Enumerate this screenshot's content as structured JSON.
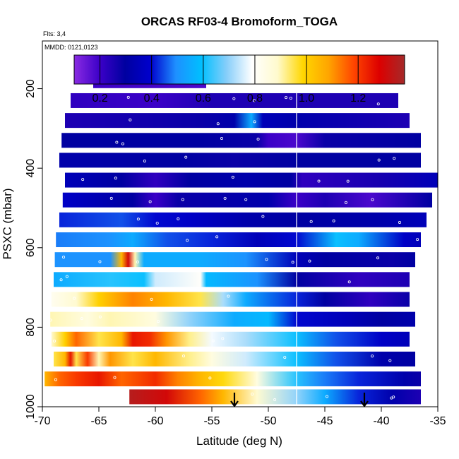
{
  "chart_data": {
    "type": "heatmap",
    "title": "ORCAS RF03-4 Bromoform_TOGA",
    "flights_note": "Flts: 3,4",
    "date_note": "MMDD: 0121,0123",
    "xlabel": "Latitude (deg N)",
    "ylabel": "PSXC (mbar)",
    "xlim": [
      -70,
      -35
    ],
    "ylim": [
      1000,
      80
    ],
    "x_ticks": [
      -70,
      -65,
      -60,
      -55,
      -50,
      -45,
      -40,
      -35
    ],
    "x_tick_labels": [
      "-70",
      "-65",
      "-60",
      "-55",
      "-50",
      "-45",
      "-40",
      "-35"
    ],
    "y_ticks": [
      200,
      400,
      600,
      800,
      1000
    ],
    "y_tick_labels": [
      "200",
      "400",
      "600",
      "800",
      "1000"
    ],
    "colorbar": {
      "min": 0.1,
      "max": 1.38,
      "ticks": [
        0.2,
        0.4,
        0.6,
        0.8,
        1.0,
        1.2
      ],
      "tick_labels": [
        "0.2",
        "0.4",
        "0.6",
        "0.8",
        "1.0",
        "1.2"
      ],
      "colors": [
        "#8a2be2",
        "#3c00c8",
        "#0000a0",
        "#0000cd",
        "#1e90ff",
        "#00bfff",
        "#87cefa",
        "#ffffff",
        "#fffacd",
        "#ffd700",
        "#ffa500",
        "#ff4500",
        "#dd0000",
        "#a52a2a"
      ]
    },
    "divider_latitude": -47.5,
    "arrow_latitudes": [
      -53,
      -41.5
    ],
    "layers": [
      {
        "p": 180,
        "x0": -65.5,
        "x1": -55.5,
        "stops": [
          [
            -65.5,
            0.2
          ],
          [
            -55.5,
            0.18
          ]
        ]
      },
      {
        "p": 230,
        "x0": -67.5,
        "x1": -38.5,
        "stops": [
          [
            -67.5,
            0.22
          ],
          [
            -60,
            0.2
          ],
          [
            -55,
            0.25
          ],
          [
            -47.5,
            0.25
          ],
          [
            -38.5,
            0.25
          ]
        ]
      },
      {
        "p": 280,
        "x0": -68,
        "x1": -37.5,
        "stops": [
          [
            -68,
            0.25
          ],
          [
            -56,
            0.28
          ],
          [
            -53,
            0.32
          ],
          [
            -51.5,
            0.55
          ],
          [
            -50.5,
            0.35
          ],
          [
            -47.5,
            0.32
          ],
          [
            -37.5,
            0.25
          ]
        ]
      },
      {
        "p": 330,
        "x0": -68.3,
        "x1": -36.5,
        "stops": [
          [
            -68.3,
            0.3
          ],
          [
            -56,
            0.3
          ],
          [
            -51,
            0.28
          ],
          [
            -50,
            0.2
          ],
          [
            -47.5,
            0.18
          ],
          [
            -45,
            0.28
          ],
          [
            -36.5,
            0.3
          ]
        ]
      },
      {
        "p": 380,
        "x0": -68.5,
        "x1": -36.5,
        "stops": [
          [
            -68.5,
            0.32
          ],
          [
            -58,
            0.3
          ],
          [
            -53,
            0.28
          ],
          [
            -47.5,
            0.3
          ],
          [
            -36.5,
            0.3
          ]
        ]
      },
      {
        "p": 430,
        "x0": -68,
        "x1": -35,
        "stops": [
          [
            -68,
            0.35
          ],
          [
            -63,
            0.3
          ],
          [
            -60,
            0.22
          ],
          [
            -57,
            0.3
          ],
          [
            -52,
            0.32
          ],
          [
            -48,
            0.3
          ],
          [
            -47,
            0.22
          ],
          [
            -40,
            0.26
          ],
          [
            -35,
            0.35
          ]
        ]
      },
      {
        "p": 480,
        "x0": -68.2,
        "x1": -35.5,
        "stops": [
          [
            -68.2,
            0.38
          ],
          [
            -62,
            0.3
          ],
          [
            -60,
            0.2
          ],
          [
            -58,
            0.28
          ],
          [
            -50,
            0.32
          ],
          [
            -47.5,
            0.2
          ],
          [
            -45,
            0.25
          ],
          [
            -41,
            0.18
          ],
          [
            -35.5,
            0.3
          ]
        ]
      },
      {
        "p": 530,
        "x0": -68.5,
        "x1": -36,
        "stops": [
          [
            -68.5,
            0.42
          ],
          [
            -63,
            0.45
          ],
          [
            -60,
            0.4
          ],
          [
            -57,
            0.38
          ],
          [
            -52,
            0.32
          ],
          [
            -47.5,
            0.3
          ],
          [
            -40,
            0.32
          ],
          [
            -36,
            0.35
          ]
        ]
      },
      {
        "p": 580,
        "x0": -68.8,
        "x1": -36.5,
        "stops": [
          [
            -68.8,
            0.48
          ],
          [
            -64,
            0.5
          ],
          [
            -62,
            0.55
          ],
          [
            -59,
            0.45
          ],
          [
            -55,
            0.42
          ],
          [
            -51,
            0.35
          ],
          [
            -47.5,
            0.4
          ],
          [
            -44,
            0.6
          ],
          [
            -42,
            0.55
          ],
          [
            -38,
            0.38
          ],
          [
            -36.5,
            0.35
          ]
        ]
      },
      {
        "p": 630,
        "x0": -68.9,
        "x1": -37,
        "stops": [
          [
            -68.9,
            0.5
          ],
          [
            -64,
            0.5
          ],
          [
            -63,
            1.05
          ],
          [
            -62.4,
            1.3
          ],
          [
            -61.8,
            0.9
          ],
          [
            -61,
            0.55
          ],
          [
            -56,
            0.55
          ],
          [
            -52,
            0.5
          ],
          [
            -47.5,
            0.35
          ],
          [
            -45,
            0.3
          ],
          [
            -39,
            0.28
          ],
          [
            -37,
            0.3
          ]
        ]
      },
      {
        "p": 680,
        "x0": -69,
        "x1": -37.5,
        "stops": [
          [
            -69,
            0.55
          ],
          [
            -64,
            0.62
          ],
          [
            -61,
            0.6
          ],
          [
            -60,
            0.75
          ],
          [
            -56,
            0.8
          ],
          [
            -55.5,
            0.58
          ],
          [
            -51,
            0.5
          ],
          [
            -47.5,
            0.3
          ],
          [
            -42,
            0.22
          ],
          [
            -37.5,
            0.25
          ]
        ]
      },
      {
        "p": 730,
        "x0": -69.2,
        "x1": -37.5,
        "stops": [
          [
            -69.2,
            0.82
          ],
          [
            -67,
            0.88
          ],
          [
            -65,
            1.0
          ],
          [
            -62,
            1.12
          ],
          [
            -59,
            1.05
          ],
          [
            -56,
            0.95
          ],
          [
            -54,
            0.72
          ],
          [
            -52,
            0.55
          ],
          [
            -47.5,
            0.42
          ],
          [
            -45,
            0.3
          ],
          [
            -41,
            0.22
          ],
          [
            -37.5,
            0.28
          ]
        ]
      },
      {
        "p": 780,
        "x0": -69.3,
        "x1": -37,
        "stops": [
          [
            -69.3,
            0.9
          ],
          [
            -66,
            0.85
          ],
          [
            -64,
            0.9
          ],
          [
            -60,
            0.85
          ],
          [
            -57,
            0.7
          ],
          [
            -53,
            0.55
          ],
          [
            -50,
            0.58
          ],
          [
            -47.5,
            0.4
          ],
          [
            -43,
            0.35
          ],
          [
            -40,
            0.3
          ],
          [
            -37,
            0.32
          ]
        ]
      },
      {
        "p": 830,
        "x0": -69.2,
        "x1": -37.5,
        "stops": [
          [
            -69.2,
            0.88
          ],
          [
            -68,
            1.0
          ],
          [
            -67,
            1.15
          ],
          [
            -65,
            0.95
          ],
          [
            -63,
            1.05
          ],
          [
            -62,
            1.25
          ],
          [
            -60.5,
            1.22
          ],
          [
            -59,
            1.1
          ],
          [
            -57,
            0.92
          ],
          [
            -55,
            0.78
          ],
          [
            -52,
            0.72
          ],
          [
            -47.5,
            0.6
          ],
          [
            -44,
            0.45
          ],
          [
            -40,
            0.38
          ],
          [
            -37.5,
            0.35
          ]
        ]
      },
      {
        "p": 880,
        "x0": -69,
        "x1": -37,
        "stops": [
          [
            -69,
            0.95
          ],
          [
            -68,
            1.05
          ],
          [
            -67.5,
            1.25
          ],
          [
            -67,
            0.95
          ],
          [
            -66,
            1.2
          ],
          [
            -65,
            0.9
          ],
          [
            -64,
            1.1
          ],
          [
            -62,
            0.95
          ],
          [
            -60,
            1.05
          ],
          [
            -57,
            0.92
          ],
          [
            -55,
            0.85
          ],
          [
            -52,
            0.75
          ],
          [
            -47.5,
            0.6
          ],
          [
            -44,
            0.45
          ],
          [
            -40,
            0.32
          ],
          [
            -37,
            0.3
          ]
        ]
      },
      {
        "p": 930,
        "x0": -69.8,
        "x1": -36.5,
        "stops": [
          [
            -69.8,
            1.05
          ],
          [
            -68.5,
            1.15
          ],
          [
            -67,
            1.2
          ],
          [
            -65,
            1.25
          ],
          [
            -63,
            1.15
          ],
          [
            -60,
            1.22
          ],
          [
            -58,
            1.12
          ],
          [
            -56,
            1.05
          ],
          [
            -54,
            0.98
          ],
          [
            -51,
            0.85
          ],
          [
            -47.5,
            0.62
          ],
          [
            -45,
            0.48
          ],
          [
            -42,
            0.42
          ],
          [
            -38,
            0.32
          ],
          [
            -36.5,
            0.28
          ]
        ]
      },
      {
        "p": 975,
        "x0": -62.3,
        "x1": -36.5,
        "stops": [
          [
            -62.3,
            1.35
          ],
          [
            -59,
            1.3
          ],
          [
            -56,
            1.15
          ],
          [
            -54,
            1.05
          ],
          [
            -51,
            0.88
          ],
          [
            -47.5,
            0.7
          ],
          [
            -45,
            0.55
          ],
          [
            -42,
            0.42
          ],
          [
            -39,
            0.32
          ],
          [
            -36.5,
            0.25
          ]
        ]
      }
    ]
  }
}
